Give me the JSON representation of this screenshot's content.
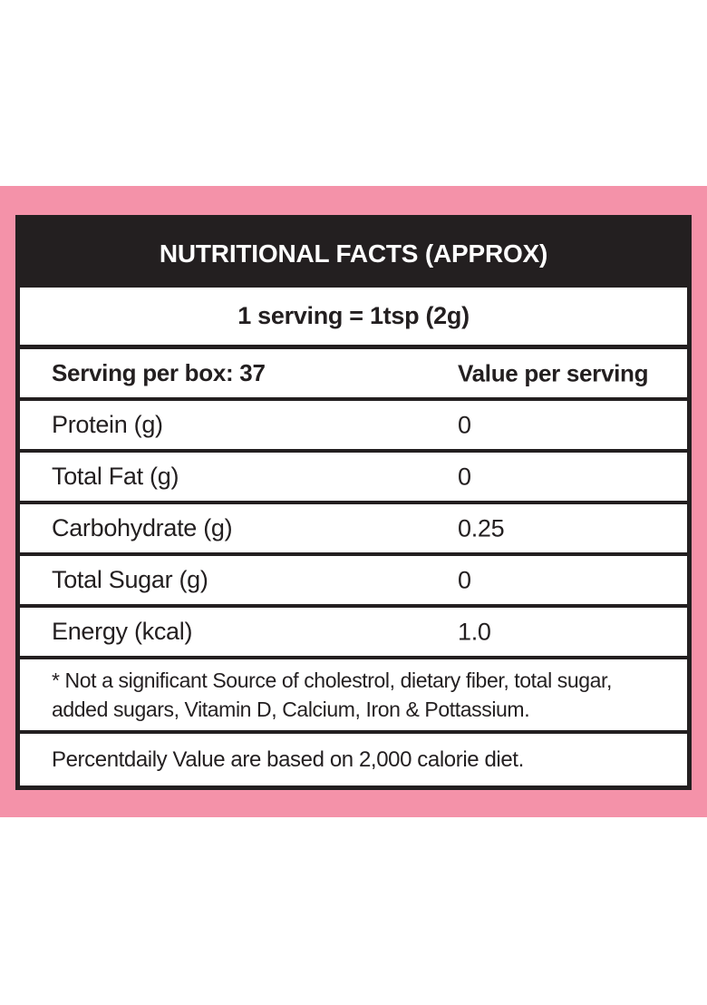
{
  "label": {
    "title": "NUTRITIONAL FACTS (APPROX)",
    "serving_info": "1 serving = 1tsp (2g)",
    "columns": {
      "left": "Serving per box: 37",
      "right": "Value per serving"
    },
    "rows": [
      {
        "name": "Protein (g)",
        "value": "0"
      },
      {
        "name": "Total Fat (g)",
        "value": "0"
      },
      {
        "name": "Carbohydrate (g)",
        "value": "0.25"
      },
      {
        "name": "Total Sugar (g)",
        "value": "0"
      },
      {
        "name": "Energy (kcal)",
        "value": "1.0"
      }
    ],
    "footnote": "* Not a significant Source of cholestrol, dietary fiber, total sugar, added sugars, Vitamin D, Calcium, Iron & Pottassium.",
    "daily_value_note": "Percentdaily Value are based on 2,000 calorie diet."
  },
  "colors": {
    "background_pink": "#F492A9",
    "table_black": "#231F20",
    "table_white": "#FFFFFF"
  }
}
